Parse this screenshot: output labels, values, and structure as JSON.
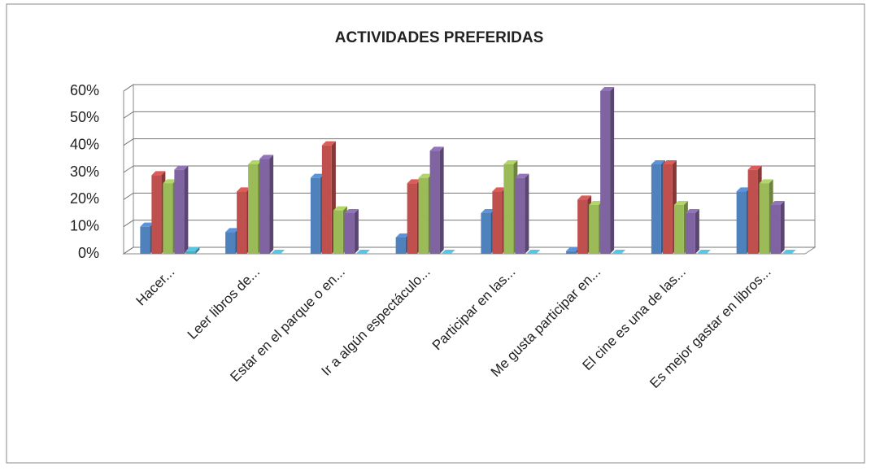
{
  "chart_data": {
    "type": "bar3d",
    "title": "ACTIVIDADES PREFERIDAS",
    "categories": [
      "Hacer...",
      "Leer libros de...",
      "Estar en el parque o en...",
      "Ir a algún espectáculo...",
      "Participar en las...",
      "Me gusta participar en...",
      "El cine es una de las...",
      "Es mejor gastar en libros..."
    ],
    "series": [
      {
        "color": "#4f81bd",
        "values": [
          10,
          8,
          28,
          6,
          15,
          1,
          33,
          23
        ]
      },
      {
        "color": "#c0504d",
        "values": [
          29,
          23,
          40,
          26,
          23,
          20,
          33,
          31
        ]
      },
      {
        "color": "#9bbb59",
        "values": [
          26,
          33,
          16,
          28,
          33,
          18,
          18,
          26
        ]
      },
      {
        "color": "#8064a2",
        "values": [
          31,
          35,
          15,
          38,
          28,
          60,
          15,
          18
        ]
      },
      {
        "color": "#4bacc6",
        "values": [
          1,
          0,
          0,
          0,
          0,
          0,
          0,
          0
        ]
      }
    ],
    "ylim": [
      0,
      60
    ],
    "yticks": [
      {
        "value": 0,
        "label": "0%"
      },
      {
        "value": 10,
        "label": "10%"
      },
      {
        "value": 20,
        "label": "20%"
      },
      {
        "value": 30,
        "label": "30%"
      },
      {
        "value": 40,
        "label": "40%"
      },
      {
        "value": 50,
        "label": "50%"
      },
      {
        "value": 60,
        "label": "60%"
      }
    ],
    "grid": true
  }
}
